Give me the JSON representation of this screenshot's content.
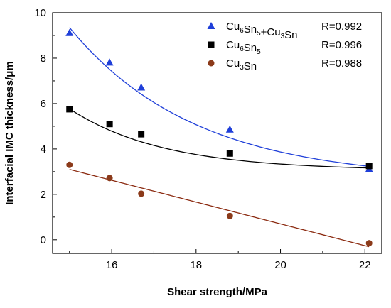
{
  "chart_data": {
    "type": "scatter",
    "xlabel": "Shear strength/MPa",
    "ylabel": "Interfacial IMC thickness/μm",
    "xlim": [
      14.6,
      22.4
    ],
    "ylim": [
      -0.6,
      10
    ],
    "x_ticks": [
      16,
      18,
      20,
      22
    ],
    "y_ticks": [
      0,
      2,
      4,
      6,
      8,
      10
    ],
    "x_tick_labels": [
      "16",
      "18",
      "20",
      "22"
    ],
    "y_tick_labels": [
      "0",
      "2",
      "4",
      "6",
      "8",
      "10"
    ],
    "grid": false,
    "legend_position": "top-right",
    "series": [
      {
        "name": "Cu6Sn5+Cu3Sn",
        "marker": "triangle",
        "color": "#1f3fd9",
        "line_color": "#1f3fd9",
        "r_label": "R=0.992",
        "points": [
          [
            15.0,
            9.1
          ],
          [
            15.95,
            7.8
          ],
          [
            16.7,
            6.7
          ],
          [
            18.8,
            4.85
          ],
          [
            22.1,
            3.1
          ]
        ],
        "fit": {
          "kind": "exp",
          "a": 2.62,
          "b": 6.73,
          "c": -0.337
        }
      },
      {
        "name": "Cu6Sn5",
        "marker": "square",
        "color": "#000000",
        "line_color": "#000000",
        "r_label": "R=0.996",
        "points": [
          [
            15.0,
            5.75
          ],
          [
            15.95,
            5.1
          ],
          [
            16.7,
            4.65
          ],
          [
            18.8,
            3.8
          ],
          [
            22.1,
            3.25
          ]
        ],
        "fit": {
          "kind": "exp",
          "a": 3.05,
          "b": 2.72,
          "c": -0.45
        }
      },
      {
        "name": "Cu3Sn",
        "marker": "circle",
        "color": "#8b3a1a",
        "line_color": "#8b2a10",
        "r_label": "R=0.988",
        "points": [
          [
            15.0,
            3.3
          ],
          [
            15.95,
            2.72
          ],
          [
            16.7,
            2.03
          ],
          [
            18.8,
            1.05
          ],
          [
            22.1,
            -0.15
          ]
        ],
        "fit": {
          "kind": "linear",
          "m": -0.48,
          "k": 10.3
        }
      }
    ]
  }
}
